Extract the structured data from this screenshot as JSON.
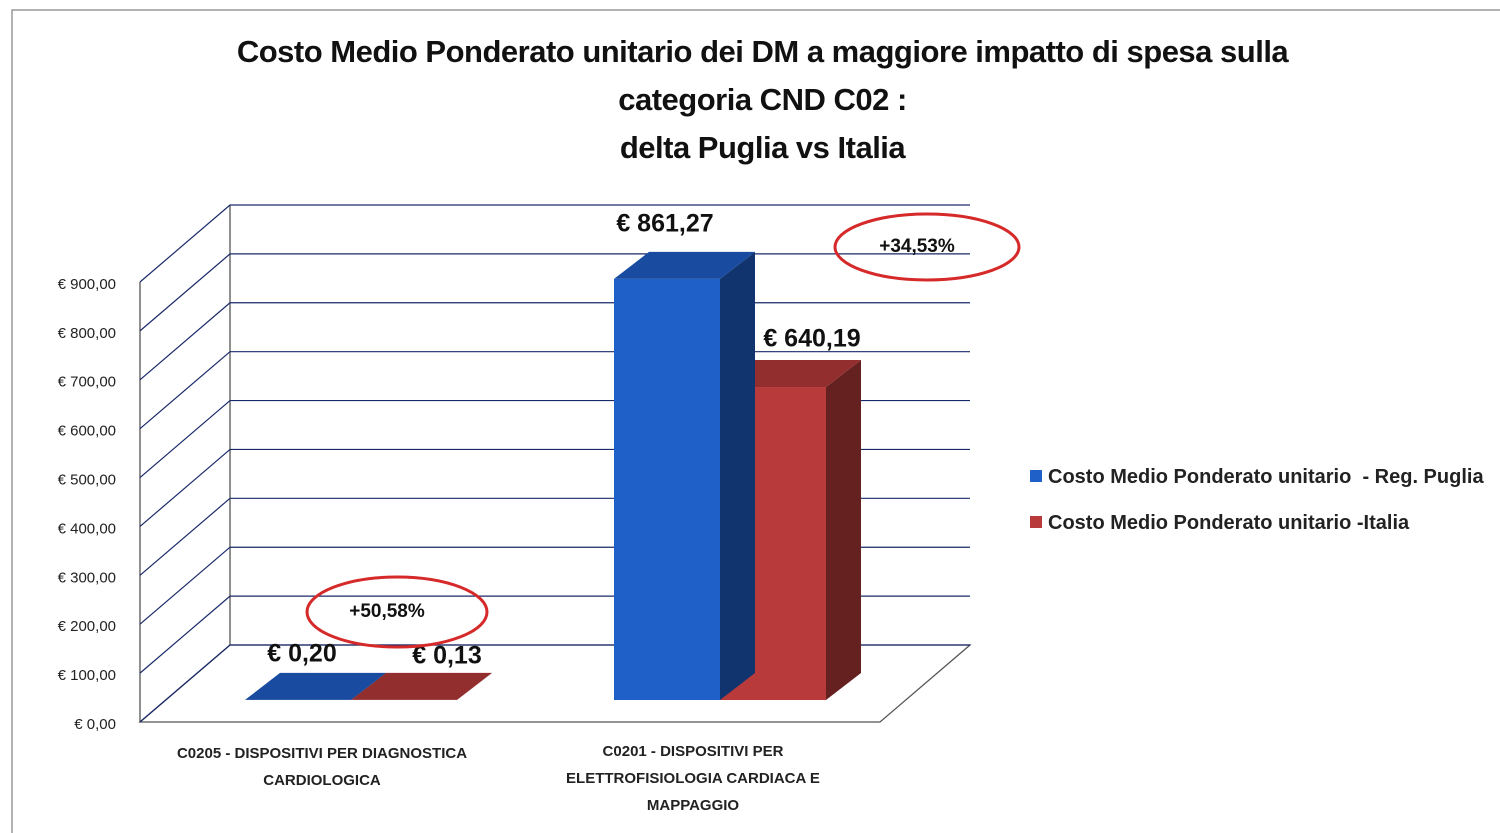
{
  "chart_data": {
    "type": "bar3d",
    "title": "Costo Medio Ponderato unitario dei DM a maggiore impatto di spesa sulla\ncategoria CND C02 :\ndelta Puglia vs Italia",
    "categories": [
      "C0205 - DISPOSITIVI PER DIAGNOSTICA\nCARDIOLOGICA",
      "C0201 - DISPOSITIVI PER\nELETTROFISIOLOGIA CARDIACA E\nMAPPAGGIO"
    ],
    "series": [
      {
        "name": "Costo Medio Ponderato unitario  - Reg. Puglia",
        "color": "#1f5fc8",
        "values": [
          0.2,
          861.27
        ],
        "value_labels": [
          "€ 0,20",
          "€ 861,27"
        ]
      },
      {
        "name": "Costo Medio Ponderato unitario -Italia",
        "color": "#b83a3a",
        "values": [
          0.13,
          640.19
        ],
        "value_labels": [
          "€ 0,13",
          "€ 640,19"
        ]
      }
    ],
    "annotations": [
      "+50,58%",
      "+34,53%"
    ],
    "ylim": [
      0,
      900
    ],
    "yticks": [
      {
        "value": 0,
        "label": "€ 0,00"
      },
      {
        "value": 100,
        "label": "€ 100,00"
      },
      {
        "value": 200,
        "label": "€ 200,00"
      },
      {
        "value": 300,
        "label": "€ 300,00"
      },
      {
        "value": 400,
        "label": "€ 400,00"
      },
      {
        "value": 500,
        "label": "€ 500,00"
      },
      {
        "value": 600,
        "label": "€ 600,00"
      },
      {
        "value": 700,
        "label": "€ 700,00"
      },
      {
        "value": 800,
        "label": "€ 800,00"
      },
      {
        "value": 900,
        "label": "€ 900,00"
      }
    ],
    "grid": true,
    "legend": "right"
  }
}
